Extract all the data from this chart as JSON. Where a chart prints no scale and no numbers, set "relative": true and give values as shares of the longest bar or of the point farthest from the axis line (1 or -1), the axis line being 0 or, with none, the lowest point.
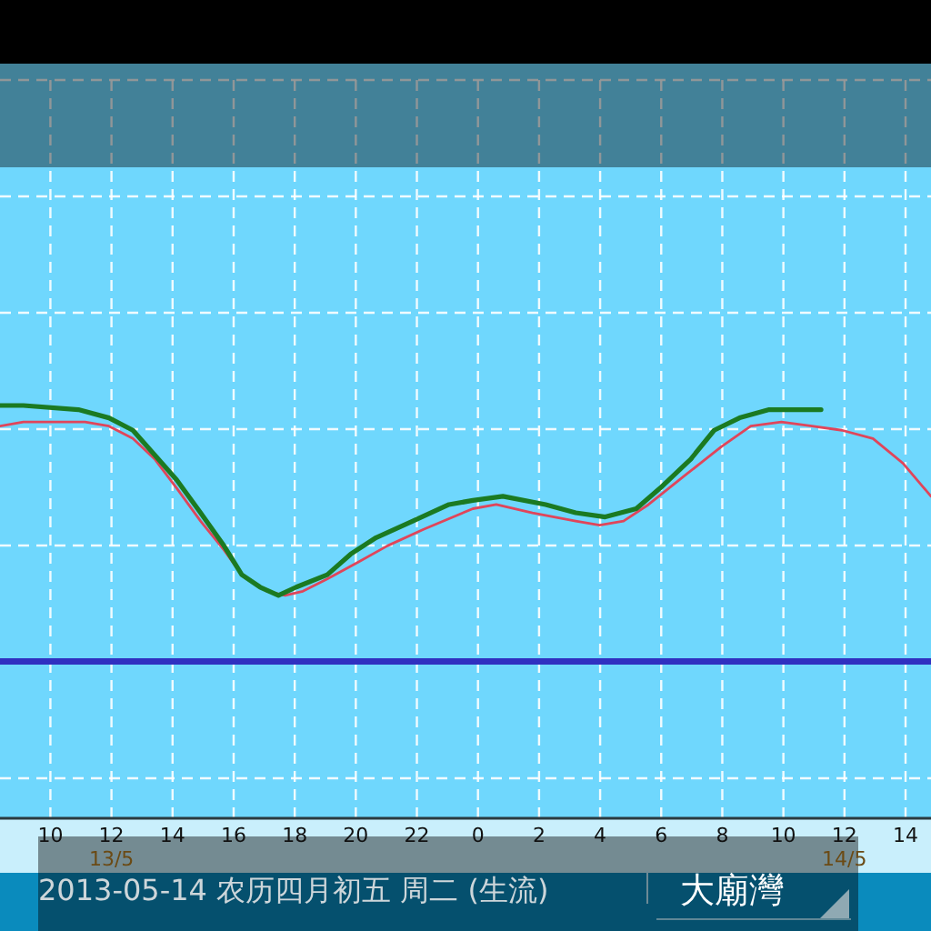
{
  "chart_data": {
    "type": "line",
    "title": "2013-05-14 农历四月初五 周二 (生流)",
    "subtitle": "大廟灣",
    "relative": true,
    "xlim": [
      "2013-05-13T08:21",
      "2013-05-14T14:50"
    ],
    "xticks": [
      {
        "value": "2013-05-13T10:00",
        "label": "10"
      },
      {
        "value": "2013-05-13T12:00",
        "label": "12\n13/5"
      },
      {
        "value": "2013-05-13T14:00",
        "label": "14"
      },
      {
        "value": "2013-05-13T16:00",
        "label": "16"
      },
      {
        "value": "2013-05-13T18:00",
        "label": "18"
      },
      {
        "value": "2013-05-13T20:00",
        "label": "20"
      },
      {
        "value": "2013-05-13T22:00",
        "label": "22"
      },
      {
        "value": "2013-05-14T00:00",
        "label": "0"
      },
      {
        "value": "2013-05-14T02:00",
        "label": "2"
      },
      {
        "value": "2013-05-14T04:00",
        "label": "4"
      },
      {
        "value": "2013-05-14T06:00",
        "label": "6"
      },
      {
        "value": "2013-05-14T08:00",
        "label": "8"
      },
      {
        "value": "2013-05-14T10:00",
        "label": "10"
      },
      {
        "value": "2013-05-14T12:00",
        "label": "12\n14/5"
      },
      {
        "value": "2013-05-14T14:00",
        "label": "14"
      }
    ],
    "grid": true,
    "series": [
      {
        "color": "#e0455a",
        "x": [
          "2013-05-13T08:21",
          "2013-05-13T09:07",
          "2013-05-13T11:08",
          "2013-05-13T11:55",
          "2013-05-13T12:42",
          "2013-05-13T13:25",
          "2013-05-13T14:08",
          "2013-05-13T14:55",
          "2013-05-13T15:41",
          "2013-05-13T16:16",
          "2013-05-13T17:05",
          "2013-05-13T17:41",
          "2013-05-13T18:16",
          "2013-05-13T19:04",
          "2013-05-13T20:04",
          "2013-05-13T21:02",
          "2013-05-13T22:13",
          "2013-05-13T23:50",
          "2013-05-14T00:36",
          "2013-05-14T01:47",
          "2013-05-14T03:12",
          "2013-05-14T03:59",
          "2013-05-14T04:46",
          "2013-05-14T05:35",
          "2013-05-14T06:46",
          "2013-05-14T07:58",
          "2013-05-14T08:56",
          "2013-05-14T09:56",
          "2013-05-14T10:56",
          "2013-05-14T11:55",
          "2013-05-14T12:56",
          "2013-05-14T13:55",
          "2013-05-14T14:50"
        ],
        "values": [
          0.95,
          0.96,
          0.96,
          0.95,
          0.92,
          0.87,
          0.8,
          0.72,
          0.65,
          0.59,
          0.55,
          0.54,
          0.55,
          0.58,
          0.62,
          0.66,
          0.7,
          0.75,
          0.76,
          0.74,
          0.72,
          0.71,
          0.72,
          0.76,
          0.83,
          0.9,
          0.95,
          0.96,
          0.95,
          0.94,
          0.92,
          0.86,
          0.78
        ]
      },
      {
        "color": "#1b7a22",
        "x": [
          "2013-05-13T08:21",
          "2013-05-13T09:07",
          "2013-05-13T10:55",
          "2013-05-13T11:55",
          "2013-05-13T12:42",
          "2013-05-13T13:25",
          "2013-05-13T14:08",
          "2013-05-13T14:55",
          "2013-05-13T15:41",
          "2013-05-13T16:16",
          "2013-05-13T16:52",
          "2013-05-13T17:28",
          "2013-05-13T18:03",
          "2013-05-13T19:04",
          "2013-05-13T19:50",
          "2013-05-13T20:40",
          "2013-05-13T21:52",
          "2013-05-13T23:03",
          "2013-05-13T23:50",
          "2013-05-14T00:49",
          "2013-05-14T02:13",
          "2013-05-14T03:12",
          "2013-05-14T04:10",
          "2013-05-14T05:11",
          "2013-05-14T05:58",
          "2013-05-14T06:58",
          "2013-05-14T07:44",
          "2013-05-14T08:34",
          "2013-05-14T09:32",
          "2013-05-14T10:21",
          "2013-05-14T11:14"
        ],
        "values": [
          1.0,
          1.0,
          0.99,
          0.97,
          0.94,
          0.88,
          0.82,
          0.74,
          0.66,
          0.59,
          0.56,
          0.54,
          0.56,
          0.59,
          0.64,
          0.68,
          0.72,
          0.76,
          0.77,
          0.78,
          0.76,
          0.74,
          0.73,
          0.75,
          0.8,
          0.87,
          0.94,
          0.97,
          0.99,
          0.99,
          0.99
        ]
      }
    ],
    "ref_lines": [
      {
        "axis": "y",
        "value": 0.38,
        "color": "#3030c0"
      }
    ]
  }
}
